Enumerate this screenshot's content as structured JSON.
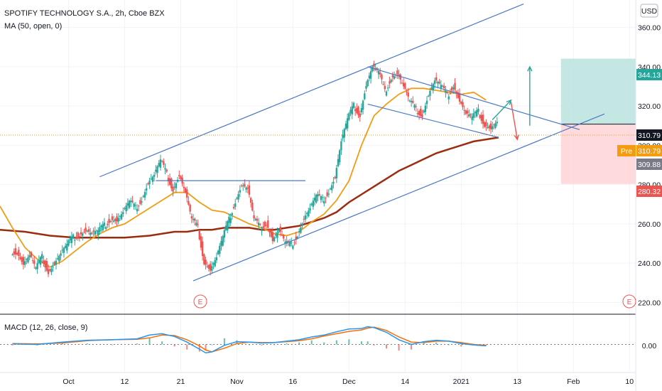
{
  "header": {
    "symbol_title": "SPOTIFY TECHNOLOGY S.A., 2h, Cboe BZX",
    "ma_label": "MA (50, open, 0)",
    "currency": "USD"
  },
  "macd": {
    "label": "MACD (12, 26, close, 9)",
    "zero_label": "0.00"
  },
  "price_badges": {
    "target": "344.13",
    "close": "310.79",
    "pre_label": "Pre",
    "pre_value": "310.79",
    "ma_value": "309.88",
    "stop": "280.32"
  },
  "earnings_marker": "E",
  "colors": {
    "up": "#26a69a",
    "down": "#ef5350",
    "ma_fast": "#f39c12",
    "ma_slow": "#9c2b0f",
    "trend": "#4a78c4",
    "macd_line": "#2196f3",
    "signal_line": "#ff6d00",
    "target_zone": "#b2dfdb",
    "stop_zone": "#ffcdd2"
  },
  "chart_data": {
    "type": "candlestick",
    "title": "SPOTIFY TECHNOLOGY S.A., 2h, Cboe BZX",
    "y_ticks": [
      "360.00",
      "340.00",
      "320.00",
      "300.00",
      "280.00",
      "260.00",
      "240.00",
      "220.00"
    ],
    "y_tick_values": [
      360,
      340,
      320,
      300,
      280,
      260,
      240,
      220
    ],
    "ylim": [
      214,
      374
    ],
    "x_tick_labels": [
      "Oct",
      "12",
      "21",
      "Nov",
      "16",
      "Dec",
      "14",
      "2021",
      "13",
      "Feb",
      "10"
    ],
    "x_tick_positions": [
      9,
      18,
      27,
      36,
      45,
      54,
      63,
      72,
      81,
      90,
      99
    ],
    "xlim": [
      -2,
      100
    ],
    "price_series": [
      [
        0,
        246
      ],
      [
        1,
        240
      ],
      [
        2,
        244
      ],
      [
        3,
        237
      ],
      [
        4,
        243
      ],
      [
        5,
        236
      ],
      [
        6,
        240
      ],
      [
        7,
        245
      ],
      [
        8,
        249
      ],
      [
        9,
        253
      ],
      [
        10,
        255
      ],
      [
        11,
        257
      ],
      [
        12,
        255
      ],
      [
        13,
        256
      ],
      [
        14,
        259
      ],
      [
        15,
        263
      ],
      [
        16,
        262
      ],
      [
        17,
        266
      ],
      [
        18,
        271
      ],
      [
        19,
        268
      ],
      [
        20,
        273
      ],
      [
        21,
        281
      ],
      [
        22,
        285
      ],
      [
        23,
        292
      ],
      [
        24,
        285
      ],
      [
        25,
        278
      ],
      [
        26,
        285
      ],
      [
        27,
        276
      ],
      [
        28,
        262
      ],
      [
        29,
        258
      ],
      [
        30,
        241
      ],
      [
        31,
        237
      ],
      [
        32,
        243
      ],
      [
        33,
        253
      ],
      [
        34,
        262
      ],
      [
        35,
        272
      ],
      [
        36,
        280
      ],
      [
        37,
        278
      ],
      [
        38,
        262
      ],
      [
        39,
        258
      ],
      [
        40,
        261
      ],
      [
        41,
        252
      ],
      [
        42,
        257
      ],
      [
        43,
        250
      ],
      [
        44,
        249
      ],
      [
        45,
        255
      ],
      [
        46,
        263
      ],
      [
        47,
        268
      ],
      [
        48,
        274
      ],
      [
        49,
        272
      ],
      [
        50,
        277
      ],
      [
        51,
        284
      ],
      [
        52,
        302
      ],
      [
        53,
        313
      ],
      [
        54,
        320
      ],
      [
        55,
        316
      ],
      [
        56,
        331
      ],
      [
        57,
        340
      ],
      [
        58,
        337
      ],
      [
        59,
        327
      ],
      [
        60,
        335
      ],
      [
        61,
        337
      ],
      [
        62,
        330
      ],
      [
        63,
        322
      ],
      [
        64,
        318
      ],
      [
        65,
        316
      ],
      [
        66,
        326
      ],
      [
        67,
        333
      ],
      [
        68,
        330
      ],
      [
        69,
        325
      ],
      [
        70,
        331
      ],
      [
        71,
        323
      ],
      [
        72,
        316
      ],
      [
        73,
        314
      ],
      [
        74,
        317
      ],
      [
        75,
        311
      ],
      [
        76,
        309
      ],
      [
        77,
        312
      ]
    ],
    "ma_fast": [
      [
        -2,
        269
      ],
      [
        0,
        258
      ],
      [
        2,
        248
      ],
      [
        4,
        242
      ],
      [
        6,
        238
      ],
      [
        8,
        241
      ],
      [
        10,
        246
      ],
      [
        12,
        251
      ],
      [
        14,
        255
      ],
      [
        16,
        258
      ],
      [
        18,
        260
      ],
      [
        20,
        264
      ],
      [
        22,
        268
      ],
      [
        24,
        272
      ],
      [
        26,
        276
      ],
      [
        28,
        276
      ],
      [
        30,
        271
      ],
      [
        32,
        267
      ],
      [
        34,
        266
      ],
      [
        36,
        263
      ],
      [
        38,
        260
      ],
      [
        40,
        258
      ],
      [
        42,
        255
      ],
      [
        44,
        254
      ],
      [
        46,
        256
      ],
      [
        48,
        261
      ],
      [
        50,
        265
      ],
      [
        52,
        272
      ],
      [
        54,
        282
      ],
      [
        56,
        300
      ],
      [
        58,
        315
      ],
      [
        60,
        321
      ],
      [
        62,
        326
      ],
      [
        64,
        329
      ],
      [
        66,
        329
      ],
      [
        68,
        328
      ],
      [
        70,
        327
      ],
      [
        72,
        326
      ],
      [
        74,
        327
      ],
      [
        76,
        323
      ]
    ],
    "ma_slow": [
      [
        -2,
        257
      ],
      [
        2,
        256
      ],
      [
        6,
        254
      ],
      [
        10,
        253
      ],
      [
        14,
        253
      ],
      [
        18,
        253
      ],
      [
        22,
        254
      ],
      [
        26,
        256
      ],
      [
        28,
        256
      ],
      [
        30,
        257
      ],
      [
        32,
        257
      ],
      [
        34,
        258
      ],
      [
        36,
        258
      ],
      [
        38,
        258
      ],
      [
        40,
        257
      ],
      [
        42,
        257
      ],
      [
        44,
        258
      ],
      [
        46,
        259
      ],
      [
        48,
        261
      ],
      [
        50,
        263
      ],
      [
        52,
        266
      ],
      [
        54,
        271
      ],
      [
        56,
        275
      ],
      [
        58,
        279
      ],
      [
        60,
        283
      ],
      [
        62,
        287
      ],
      [
        64,
        290
      ],
      [
        66,
        293
      ],
      [
        68,
        296
      ],
      [
        70,
        298
      ],
      [
        72,
        300
      ],
      [
        74,
        302
      ],
      [
        76,
        303
      ],
      [
        78,
        304
      ]
    ],
    "trendlines": [
      {
        "name": "channel-upper",
        "from": [
          14,
          284
        ],
        "to": [
          82,
          372
        ]
      },
      {
        "name": "channel-lower",
        "from": [
          29,
          231
        ],
        "to": [
          95,
          316
        ]
      },
      {
        "name": "neckline",
        "from": [
          23,
          282
        ],
        "to": [
          47,
          282
        ]
      },
      {
        "name": "wedge-upper",
        "from": [
          57,
          340
        ],
        "to": [
          91,
          308
        ]
      },
      {
        "name": "wedge-lower",
        "from": [
          57,
          321
        ],
        "to": [
          78,
          304
        ]
      }
    ],
    "arrows": [
      {
        "name": "green-small",
        "from": [
          77,
          313
        ],
        "to": [
          80,
          323
        ],
        "color": "up"
      },
      {
        "name": "red-small",
        "from": [
          80,
          322
        ],
        "to": [
          81,
          303
        ],
        "color": "down"
      },
      {
        "name": "green-big",
        "from": [
          83,
          310
        ],
        "to": [
          83,
          340
        ],
        "color": "up"
      }
    ],
    "position": {
      "entry": 310.79,
      "target": 344.13,
      "stop": 280.32,
      "x_from": 88,
      "x_to": 100
    },
    "macd_ylim": [
      -0.6,
      0.6
    ],
    "macd_line": [
      [
        0,
        0.01
      ],
      [
        4,
        0.0
      ],
      [
        8,
        0.05
      ],
      [
        12,
        0.09
      ],
      [
        16,
        0.1
      ],
      [
        20,
        0.12
      ],
      [
        22,
        0.2
      ],
      [
        24,
        0.23
      ],
      [
        26,
        0.17
      ],
      [
        28,
        0.05
      ],
      [
        30,
        -0.1
      ],
      [
        31,
        -0.18
      ],
      [
        32,
        -0.16
      ],
      [
        34,
        -0.02
      ],
      [
        36,
        0.06
      ],
      [
        38,
        0.05
      ],
      [
        40,
        0.03
      ],
      [
        42,
        0.04
      ],
      [
        44,
        0.07
      ],
      [
        46,
        0.1
      ],
      [
        48,
        0.16
      ],
      [
        50,
        0.2
      ],
      [
        52,
        0.27
      ],
      [
        54,
        0.33
      ],
      [
        56,
        0.34
      ],
      [
        57,
        0.38
      ],
      [
        58,
        0.36
      ],
      [
        60,
        0.26
      ],
      [
        62,
        0.1
      ],
      [
        64,
        0.0
      ],
      [
        66,
        0.06
      ],
      [
        68,
        0.09
      ],
      [
        70,
        0.07
      ],
      [
        72,
        0.02
      ],
      [
        74,
        -0.01
      ],
      [
        76,
        -0.03
      ]
    ],
    "signal_line": [
      [
        0,
        0.02
      ],
      [
        4,
        0.01
      ],
      [
        8,
        0.03
      ],
      [
        12,
        0.08
      ],
      [
        16,
        0.1
      ],
      [
        20,
        0.11
      ],
      [
        22,
        0.14
      ],
      [
        24,
        0.2
      ],
      [
        26,
        0.19
      ],
      [
        28,
        0.1
      ],
      [
        30,
        -0.03
      ],
      [
        31,
        -0.12
      ],
      [
        32,
        -0.16
      ],
      [
        34,
        -0.08
      ],
      [
        36,
        0.02
      ],
      [
        38,
        0.05
      ],
      [
        40,
        0.04
      ],
      [
        42,
        0.04
      ],
      [
        44,
        0.06
      ],
      [
        46,
        0.08
      ],
      [
        48,
        0.12
      ],
      [
        50,
        0.18
      ],
      [
        52,
        0.23
      ],
      [
        54,
        0.28
      ],
      [
        56,
        0.31
      ],
      [
        57,
        0.35
      ],
      [
        58,
        0.37
      ],
      [
        60,
        0.3
      ],
      [
        62,
        0.16
      ],
      [
        64,
        0.05
      ],
      [
        66,
        0.04
      ],
      [
        68,
        0.07
      ],
      [
        70,
        0.07
      ],
      [
        72,
        0.04
      ],
      [
        74,
        0.0
      ],
      [
        76,
        -0.02
      ]
    ]
  }
}
